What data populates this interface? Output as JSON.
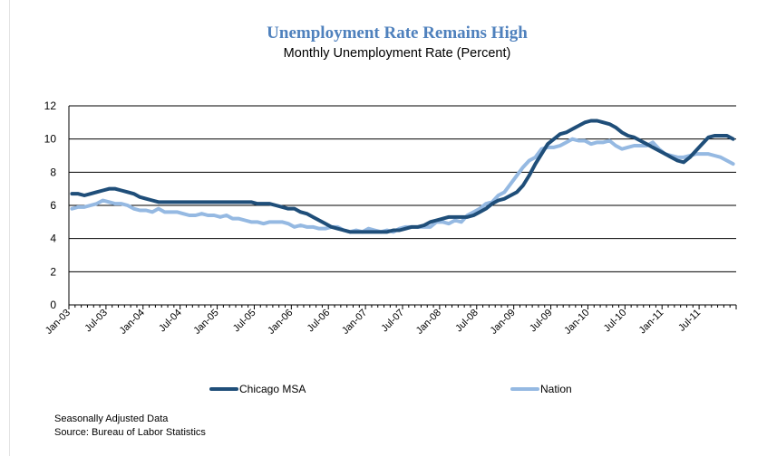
{
  "chart_data": {
    "type": "line",
    "title": "Unemployment Rate Remains High",
    "subtitle": "Monthly Unemployment Rate (Percent)",
    "ylim": [
      0,
      12
    ],
    "yticks": [
      0,
      2,
      4,
      6,
      8,
      10,
      12
    ],
    "x_tick_labels": [
      "Jan-03",
      "Jul-03",
      "Jan-04",
      "Jul-04",
      "Jan-05",
      "Jul-05",
      "Jan-06",
      "Jul-06",
      "Jan-07",
      "Jul-07",
      "Jan-08",
      "Jul-08",
      "Jan-09",
      "Jul-09",
      "Jan-10",
      "Jul-10",
      "Jan-11",
      "Jul-11"
    ],
    "x_start": "Jan-03",
    "x_end": "Dec-11",
    "grid": "horizontal",
    "legend_position": "bottom",
    "series": [
      {
        "name": "Chicago MSA",
        "color": "#1f4e79",
        "values": [
          6.7,
          6.7,
          6.6,
          6.7,
          6.8,
          6.9,
          7.0,
          7.0,
          6.9,
          6.8,
          6.7,
          6.5,
          6.4,
          6.3,
          6.2,
          6.2,
          6.2,
          6.2,
          6.2,
          6.2,
          6.2,
          6.2,
          6.2,
          6.2,
          6.2,
          6.2,
          6.2,
          6.2,
          6.2,
          6.2,
          6.1,
          6.1,
          6.1,
          6.0,
          5.9,
          5.8,
          5.8,
          5.6,
          5.5,
          5.3,
          5.1,
          4.9,
          4.7,
          4.6,
          4.5,
          4.4,
          4.4,
          4.4,
          4.4,
          4.4,
          4.4,
          4.4,
          4.5,
          4.5,
          4.6,
          4.7,
          4.7,
          4.8,
          5.0,
          5.1,
          5.2,
          5.3,
          5.3,
          5.3,
          5.3,
          5.4,
          5.6,
          5.8,
          6.1,
          6.3,
          6.4,
          6.6,
          6.8,
          7.2,
          7.8,
          8.5,
          9.1,
          9.7,
          10.0,
          10.3,
          10.4,
          10.6,
          10.8,
          11.0,
          11.1,
          11.1,
          11.0,
          10.9,
          10.7,
          10.4,
          10.2,
          10.1,
          9.9,
          9.7,
          9.5,
          9.3,
          9.1,
          8.9,
          8.7,
          8.6,
          8.9,
          9.3,
          9.7,
          10.1,
          10.2,
          10.2,
          10.2,
          10.0
        ]
      },
      {
        "name": "Nation",
        "color": "#95b9e2",
        "values": [
          5.8,
          5.9,
          5.9,
          6.0,
          6.1,
          6.3,
          6.2,
          6.1,
          6.1,
          6.0,
          5.8,
          5.7,
          5.7,
          5.6,
          5.8,
          5.6,
          5.6,
          5.6,
          5.5,
          5.4,
          5.4,
          5.5,
          5.4,
          5.4,
          5.3,
          5.4,
          5.2,
          5.2,
          5.1,
          5.0,
          5.0,
          4.9,
          5.0,
          5.0,
          5.0,
          4.9,
          4.7,
          4.8,
          4.7,
          4.7,
          4.6,
          4.6,
          4.7,
          4.7,
          4.5,
          4.4,
          4.5,
          4.4,
          4.6,
          4.5,
          4.4,
          4.5,
          4.4,
          4.6,
          4.7,
          4.7,
          4.7,
          4.7,
          4.7,
          5.0,
          5.0,
          4.9,
          5.1,
          5.0,
          5.4,
          5.6,
          5.8,
          6.1,
          6.2,
          6.6,
          6.8,
          7.3,
          7.8,
          8.3,
          8.7,
          8.9,
          9.4,
          9.5,
          9.5,
          9.6,
          9.8,
          10.0,
          9.9,
          9.9,
          9.7,
          9.8,
          9.8,
          9.9,
          9.6,
          9.4,
          9.5,
          9.6,
          9.6,
          9.6,
          9.8,
          9.4,
          9.1,
          9.0,
          8.9,
          8.9,
          9.0,
          9.1,
          9.1,
          9.1,
          9.0,
          8.9,
          8.7,
          8.5
        ]
      }
    ]
  },
  "notes": {
    "line1": "Seasonally Adjusted Data",
    "line2": "Source: Bureau of Labor Statistics"
  }
}
